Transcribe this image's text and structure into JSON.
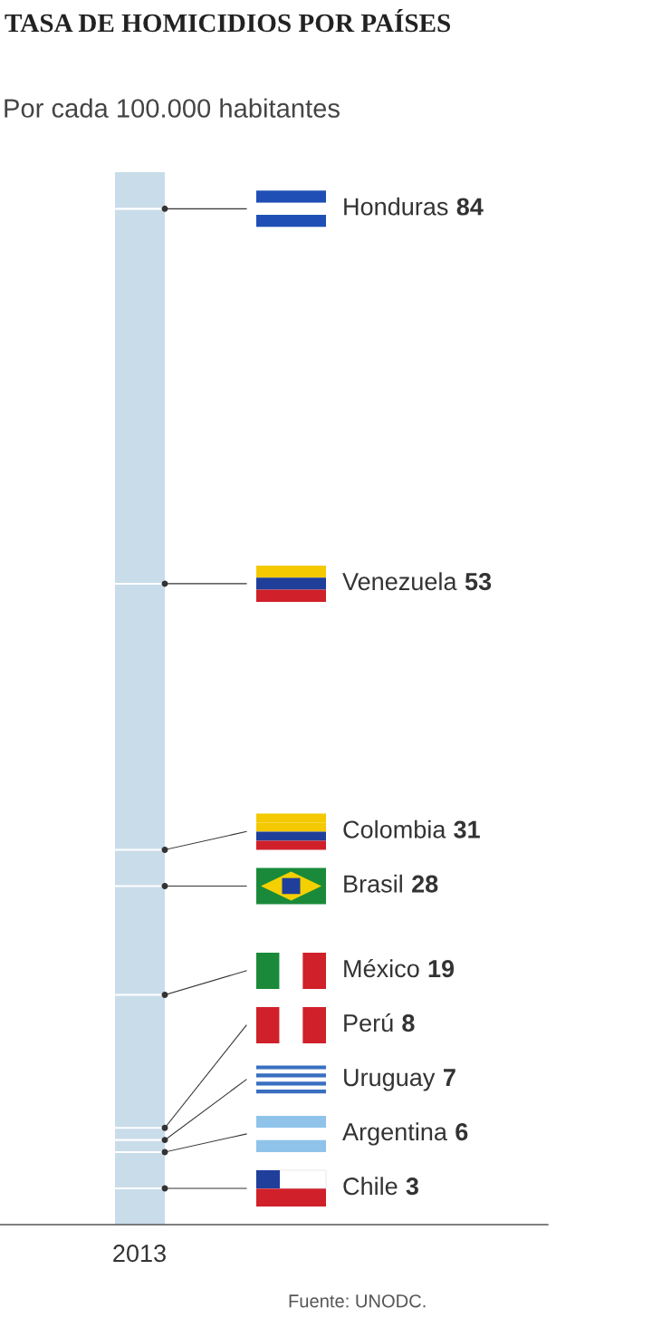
{
  "chart_data": {
    "type": "other",
    "title": "TASA DE HOMICIDIOS POR PAÍSES",
    "subtitle": "Por cada 100.000 habitantes",
    "xlabel": "2013",
    "categories": [
      "Honduras",
      "Venezuela",
      "Colombia",
      "Brasil",
      "México",
      "Perú",
      "Uruguay",
      "Argentina",
      "Chile"
    ],
    "values": [
      84,
      53,
      31,
      28,
      19,
      8,
      7,
      6,
      3
    ],
    "color": "#c9dcea",
    "data_labels": true,
    "annotations": [
      "Fuente: UNODC."
    ]
  }
}
